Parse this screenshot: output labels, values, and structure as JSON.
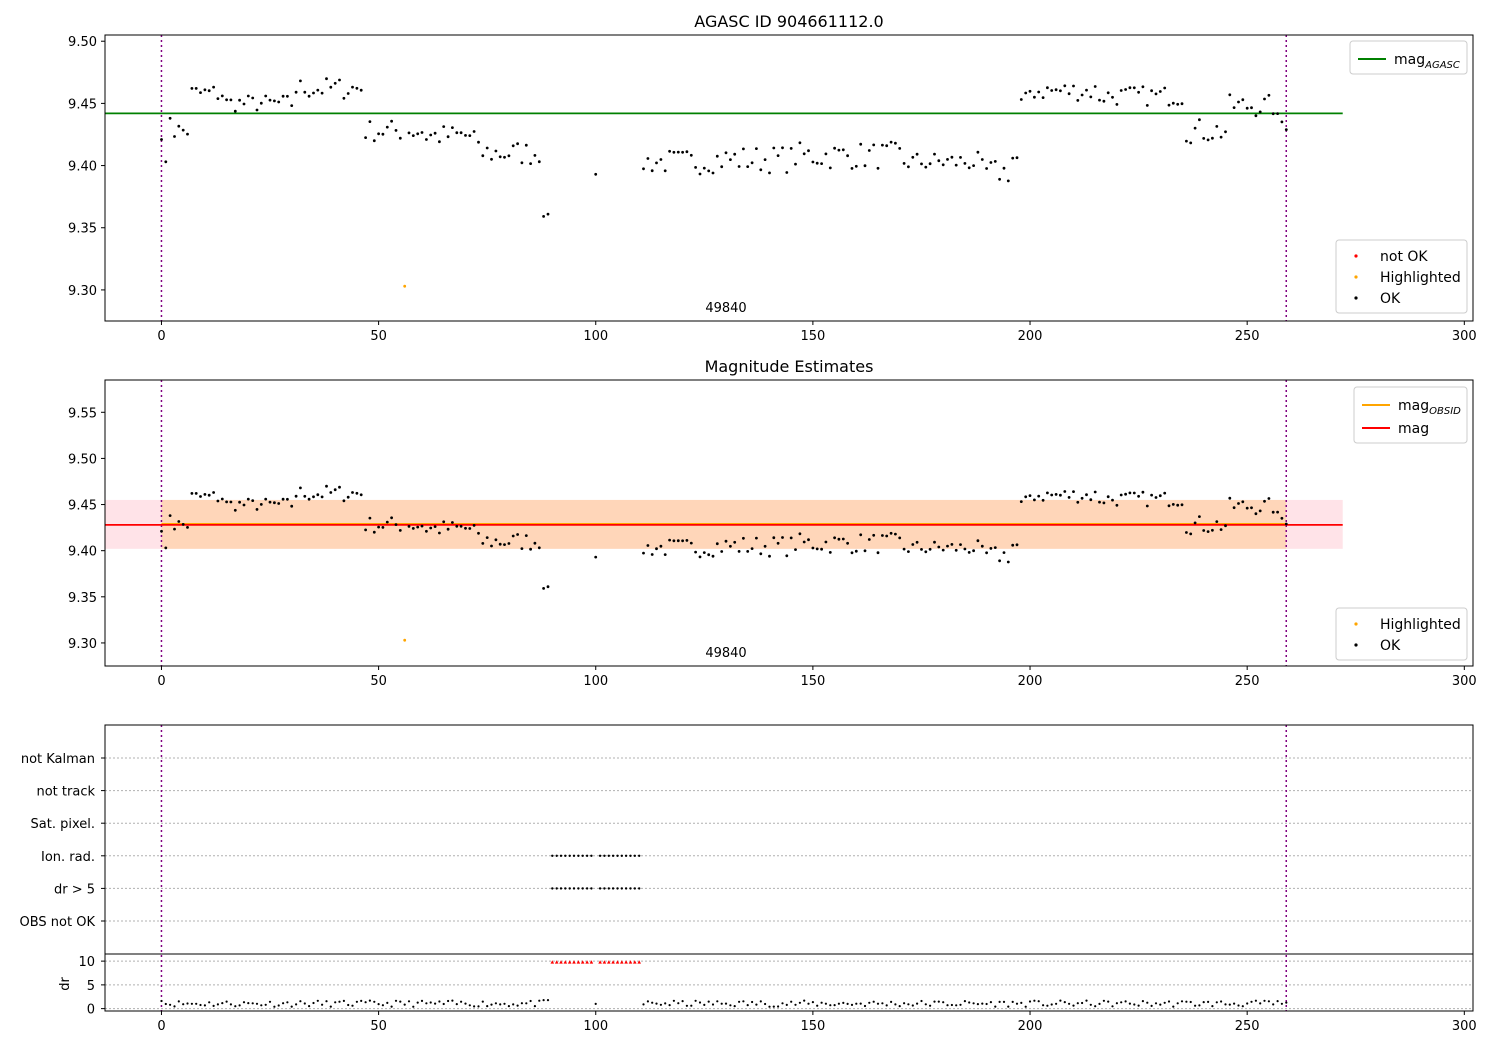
{
  "chart_data": [
    {
      "type": "scatter",
      "title": "AGASC ID 904661112.0",
      "xlim": [
        -13,
        302
      ],
      "ylim": [
        9.275,
        9.505
      ],
      "xticks": [
        0,
        50,
        100,
        150,
        200,
        250,
        300
      ],
      "yticks": [
        9.3,
        9.35,
        9.4,
        9.45,
        9.5
      ],
      "ytick_labels": [
        "9.30",
        "9.35",
        "9.40",
        "9.45",
        "9.50"
      ],
      "obsid_label": "49840",
      "obsid_label_x": 130,
      "obs_boundaries": [
        0,
        259
      ],
      "hline": {
        "name": "mag",
        "subscript": "AGASC",
        "value": 9.442,
        "x_range": [
          -13,
          272
        ],
        "color": "#008000"
      },
      "highlighted": [
        [
          56,
          9.303
        ]
      ],
      "legend_lines": [
        {
          "name": "mag",
          "subscript": "AGASC",
          "color": "#008000"
        }
      ],
      "legend_points": [
        {
          "name": "not OK",
          "color": "#ff0000"
        },
        {
          "name": "Highlighted",
          "color": "#ffa500"
        },
        {
          "name": "OK",
          "color": "#000000"
        }
      ]
    },
    {
      "type": "scatter",
      "title": "Magnitude Estimates",
      "xlim": [
        -13,
        302
      ],
      "ylim": [
        9.275,
        9.585
      ],
      "xticks": [
        0,
        50,
        100,
        150,
        200,
        250,
        300
      ],
      "yticks": [
        9.3,
        9.35,
        9.4,
        9.45,
        9.5,
        9.55
      ],
      "ytick_labels": [
        "9.30",
        "9.35",
        "9.40",
        "9.45",
        "9.50",
        "9.55"
      ],
      "obsid_label": "49840",
      "obsid_label_x": 130,
      "obs_boundaries": [
        0,
        259
      ],
      "bands": [
        {
          "x_range": [
            -13,
            272
          ],
          "y_range": [
            9.402,
            9.455
          ],
          "color": "#ffc0cb",
          "opacity": 0.45
        },
        {
          "x_range": [
            0,
            259
          ],
          "y_range": [
            9.402,
            9.455
          ],
          "color": "#ffa500",
          "opacity": 0.2
        }
      ],
      "hlines": [
        {
          "name": "mag",
          "subscript": "OBSID",
          "value": 9.429,
          "x_range": [
            0,
            259
          ],
          "color": "#ffa500"
        },
        {
          "name": "mag",
          "value": 9.428,
          "x_range": [
            -13,
            272
          ],
          "color": "#ff0000"
        }
      ],
      "highlighted": [
        [
          56,
          9.303
        ]
      ],
      "legend_lines": [
        {
          "name": "mag",
          "subscript": "OBSID",
          "color": "#ffa500"
        },
        {
          "name": "mag",
          "subscript": "",
          "color": "#ff0000"
        }
      ],
      "legend_points": [
        {
          "name": "Highlighted",
          "color": "#ffa500"
        },
        {
          "name": "OK",
          "color": "#000000"
        }
      ]
    },
    {
      "type": "scatter",
      "title": "",
      "xlim": [
        -13,
        302
      ],
      "xticks": [
        0,
        50,
        100,
        150,
        200,
        250,
        300
      ],
      "flag_rows": [
        "not Kalman",
        "not track",
        "Sat. pixel.",
        "Ion. rad.",
        "dr > 5",
        "OBS not OK"
      ],
      "flag_x_ranges": {
        "Ion. rad.": [
          [
            90,
            99
          ],
          [
            101,
            110
          ]
        ],
        "dr > 5": [
          [
            90,
            99
          ],
          [
            101,
            110
          ]
        ]
      },
      "dr_ylabel": "dr",
      "dr_yticks": [
        0,
        5,
        10
      ],
      "dr_ylim": [
        -0.5,
        11.5
      ],
      "dr_clip_value": 10,
      "dr_clip_x_ranges": [
        [
          90,
          99
        ],
        [
          101,
          110
        ]
      ],
      "obs_boundaries": [
        0,
        259
      ]
    }
  ],
  "colors": {
    "ok": "#000000",
    "not_ok": "#ff0000",
    "highlighted": "#ffa500",
    "boundary": "#800080"
  }
}
